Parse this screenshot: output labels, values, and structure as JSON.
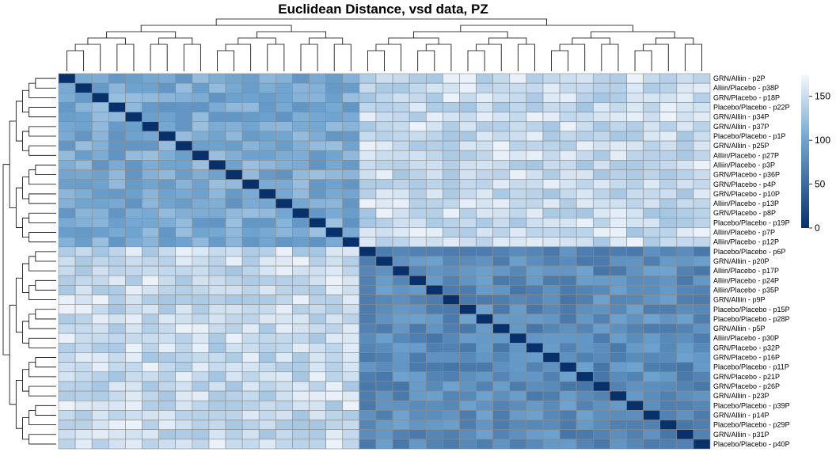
{
  "chart_data": {
    "type": "heatmap",
    "title": "Euclidean Distance, vsd data, PZ",
    "samples": [
      "GRN/Alliin - p2P",
      "Alliin/Placebo - p38P",
      "GRN/Placebo - p18P",
      "Placebo/Placebo - p22P",
      "GRN/Alliin - p34P",
      "GRN/Alliin - p37P",
      "Placebo/Placebo - p1P",
      "GRN/Alliin - p25P",
      "Alliin/Placebo - p27P",
      "Alliin/Placebo - p3P",
      "GRN/Placebo - p36P",
      "GRN/Placebo - p4P",
      "GRN/Placebo - p10P",
      "Alliin/Placebo - p13P",
      "GRN/Placebo - p8P",
      "Placebo/Placebo - p19P",
      "Alliin/Placebo - p7P",
      "Alliin/Placebo - p12P",
      "Placebo/Placebo - p6P",
      "GRN/Alliin - p20P",
      "Alliin/Placebo - p17P",
      "Alliin/Placebo - p24P",
      "Alliin/Placebo - p35P",
      "GRN/Alliin - p9P",
      "Placebo/Placebo - p15P",
      "Placebo/Placebo - p28P",
      "GRN/Alliin - p5P",
      "Alliin/Placebo - p30P",
      "GRN/Placebo - p32P",
      "GRN/Placebo - p16P",
      "Placebo/Placebo - p11P",
      "GRN/Placebo - p21P",
      "GRN/Placebo - p26P",
      "GRN/Alliin - p23P",
      "Placebo/Placebo - p39P",
      "GRN/Alliin - p14P",
      "Placebo/Placebo - p29P",
      "GRN/Alliin - p31P",
      "Placebo/Placebo - p40P"
    ],
    "cluster_a_size": 18,
    "within_a_distance": 105,
    "within_b_distance": 80,
    "between_distance": 150,
    "max_distance": 175,
    "color_scale": {
      "low_value": 0,
      "low_color": "#08306b",
      "mid_value": 100,
      "mid_color": "#6fa4d0",
      "high_value": 175,
      "high_color": "#f5f8fd"
    },
    "legend": {
      "ticks": [
        0,
        50,
        100,
        150
      ],
      "position": "right"
    },
    "cell_border_color": "#8c8c8c",
    "dendrogram_color": "#000000"
  }
}
